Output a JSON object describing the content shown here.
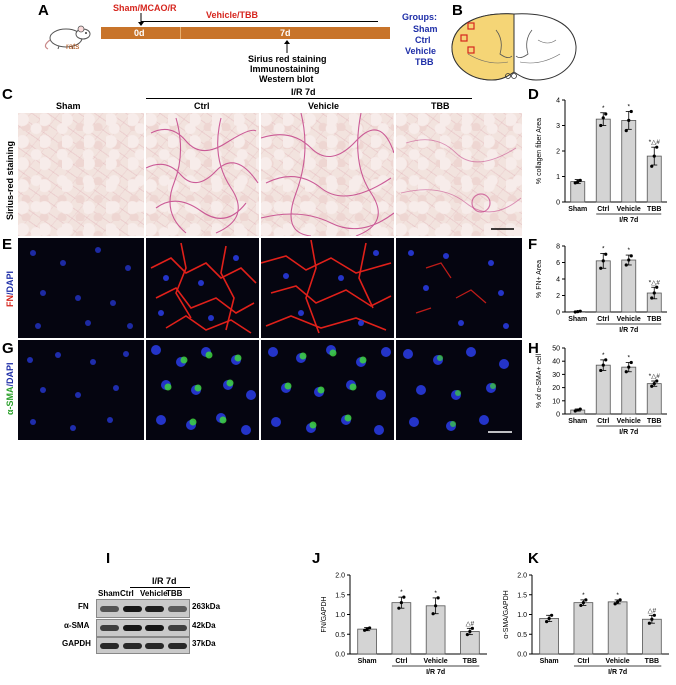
{
  "panel_letters": [
    "A",
    "B",
    "C",
    "D",
    "E",
    "F",
    "G",
    "H",
    "I",
    "J",
    "K"
  ],
  "timeline": {
    "sham_mcao": "Sham/MCAO/R",
    "vehicle_tbb": "Vehicle/TBB",
    "d0": "0d",
    "d7": "7d",
    "animal": "rats",
    "outcomes": [
      "Sirius red staining",
      "Immunostaining",
      "Western blot"
    ],
    "groups_title": "Groups:",
    "groups": [
      "Sham",
      "Ctrl",
      "Vehicle",
      "TBB"
    ]
  },
  "micro": {
    "col_headers": [
      "Sham",
      "Ctrl",
      "Vehicle",
      "TBB"
    ],
    "ir_label": "I/R 7d",
    "row_sirius": "Sirius-red staining",
    "row_fn_a": "FN",
    "row_fn_b": "/DAPI",
    "row_sma_a": "α-SMA",
    "row_sma_b": "/DAPI"
  },
  "western": {
    "ir_label": "I/R 7d",
    "lanes": [
      "Sham",
      "Ctrl",
      "Vehicle",
      "TBB"
    ],
    "bands": [
      {
        "name": "FN",
        "kda": "263kDa",
        "intensity": [
          0.55,
          0.95,
          0.9,
          0.5
        ]
      },
      {
        "name": "α-SMA",
        "kda": "42kDa",
        "intensity": [
          0.7,
          0.95,
          0.95,
          0.7
        ]
      },
      {
        "name": "GAPDH",
        "kda": "37kDa",
        "intensity": [
          0.85,
          0.85,
          0.85,
          0.85
        ]
      }
    ]
  },
  "chart_data": [
    {
      "id": "D",
      "type": "bar",
      "categories": [
        "Sham",
        "Ctrl",
        "Vehicle",
        "TBB"
      ],
      "values": [
        0.8,
        3.25,
        3.2,
        1.8
      ],
      "errors": [
        0.08,
        0.25,
        0.35,
        0.35
      ],
      "points": [
        [
          0.75,
          0.8,
          0.85
        ],
        [
          3.0,
          3.3,
          3.45
        ],
        [
          2.8,
          3.2,
          3.55
        ],
        [
          1.4,
          1.8,
          2.15
        ]
      ],
      "ylabel": "% collagen fiber Area",
      "ylim": [
        0,
        4
      ],
      "yticks": [
        0,
        1,
        2,
        3,
        4
      ],
      "marks": [
        "",
        "*",
        "*",
        "*△#"
      ],
      "group_label": "I/R 7d"
    },
    {
      "id": "F",
      "type": "bar",
      "categories": [
        "Sham",
        "Ctrl",
        "Vehicle",
        "TBB"
      ],
      "values": [
        0.05,
        6.2,
        6.3,
        2.3
      ],
      "errors": [
        0.05,
        0.9,
        0.6,
        0.7
      ],
      "points": [
        [
          0.0,
          0.05,
          0.1
        ],
        [
          5.3,
          6.2,
          7.0
        ],
        [
          5.7,
          6.3,
          6.8
        ],
        [
          1.7,
          2.3,
          3.0
        ]
      ],
      "ylabel": "% FN+ Area",
      "ylim": [
        0,
        8
      ],
      "yticks": [
        0,
        2,
        4,
        6,
        8
      ],
      "marks": [
        "",
        "*",
        "*",
        "*△#"
      ],
      "group_label": "I/R 7d"
    },
    {
      "id": "H",
      "type": "bar",
      "categories": [
        "Sham",
        "Ctrl",
        "Vehicle",
        "TBB"
      ],
      "values": [
        3,
        37,
        35.5,
        23
      ],
      "errors": [
        0.8,
        4,
        3.5,
        2
      ],
      "points": [
        [
          2.3,
          3,
          3.7
        ],
        [
          33,
          37,
          41
        ],
        [
          32,
          35.5,
          39
        ],
        [
          21,
          23,
          25
        ]
      ],
      "ylabel": "% of α-SMA+ cell",
      "ylim": [
        0,
        50
      ],
      "yticks": [
        0,
        10,
        20,
        30,
        40,
        50
      ],
      "marks": [
        "",
        "*",
        "*",
        "*△#"
      ],
      "group_label": "I/R 7d"
    },
    {
      "id": "J",
      "type": "bar",
      "categories": [
        "Sham",
        "Ctrl",
        "Vehicle",
        "TBB"
      ],
      "values": [
        0.63,
        1.3,
        1.22,
        0.57
      ],
      "errors": [
        0.04,
        0.14,
        0.2,
        0.08
      ],
      "points": [
        [
          0.6,
          0.63,
          0.66
        ],
        [
          1.16,
          1.3,
          1.44
        ],
        [
          1.02,
          1.22,
          1.42
        ],
        [
          0.49,
          0.57,
          0.65
        ]
      ],
      "ylabel": "FN/GAPDH",
      "ylim": [
        0,
        2.0
      ],
      "yticks": [
        0.0,
        0.5,
        1.0,
        1.5,
        2.0
      ],
      "marks": [
        "",
        "*",
        "*",
        "△#"
      ],
      "group_label": "I/R 7d"
    },
    {
      "id": "K",
      "type": "bar",
      "categories": [
        "Sham",
        "Ctrl",
        "Vehicle",
        "TBB"
      ],
      "values": [
        0.9,
        1.3,
        1.32,
        0.88
      ],
      "errors": [
        0.08,
        0.07,
        0.05,
        0.1
      ],
      "points": [
        [
          0.82,
          0.9,
          0.98
        ],
        [
          1.23,
          1.3,
          1.37
        ],
        [
          1.27,
          1.32,
          1.37
        ],
        [
          0.78,
          0.88,
          0.98
        ]
      ],
      "ylabel": "α-SMA/GAPDH",
      "ylim": [
        0,
        2.0
      ],
      "yticks": [
        0.0,
        0.5,
        1.0,
        1.5,
        2.0
      ],
      "marks": [
        "",
        "*",
        "*",
        "△#"
      ],
      "group_label": "I/R 7d"
    }
  ]
}
